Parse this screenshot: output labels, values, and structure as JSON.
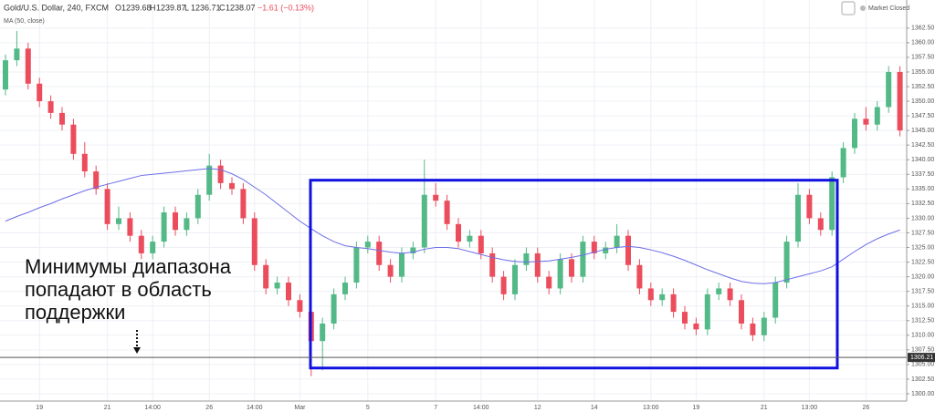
{
  "header": {
    "symbol": "Gold/U.S. Dollar, 240, FXCM",
    "ohlc": [
      {
        "key": "O",
        "value": "1239.68"
      },
      {
        "key": "H",
        "value": "1239.87"
      },
      {
        "key": "L",
        "value": "1236.71"
      },
      {
        "key": "C",
        "value": "1238.07"
      }
    ],
    "change": "−1.61 (−0.13%)",
    "status": "Market Closed"
  },
  "annotation": [
    "Минимумы диапазона",
    "попадают в область",
    "поддержки"
  ],
  "chart_data": {
    "type": "candlestick",
    "categories": [
      null,
      null,
      null,
      "19",
      null,
      null,
      null,
      null,
      null,
      "21",
      null,
      null,
      null,
      "14:00",
      null,
      null,
      null,
      null,
      "26",
      null,
      null,
      null,
      "14:00",
      null,
      null,
      null,
      "Mar",
      null,
      null,
      null,
      null,
      null,
      "5",
      null,
      null,
      null,
      null,
      null,
      "7",
      null,
      null,
      null,
      "14:00",
      null,
      null,
      null,
      null,
      "12",
      null,
      null,
      null,
      null,
      "14",
      null,
      null,
      null,
      null,
      "13:00",
      null,
      null,
      null,
      "19",
      null,
      null,
      null,
      null,
      null,
      "21",
      null,
      null,
      null,
      "13:00",
      null,
      null,
      null,
      null,
      "26",
      null,
      null,
      null
    ],
    "open": [
      1352,
      1357,
      1359,
      1353,
      1350,
      1348,
      1346,
      1341,
      1338,
      1335,
      1329,
      1330,
      1327,
      1324,
      1326,
      1331,
      1328,
      1330,
      1334,
      1339,
      1336,
      1335,
      1330,
      1322,
      1318,
      1319,
      1316,
      1314,
      1309,
      1312,
      1317,
      1319,
      1325,
      1326,
      1322,
      1320,
      1324,
      1325,
      1334,
      1333,
      1329,
      1326,
      1327,
      1324,
      1320,
      1317,
      1322,
      1324,
      1320,
      1318,
      1323,
      1320,
      1326,
      1324,
      1325,
      1327,
      1322,
      1318,
      1316,
      1317,
      1314,
      1312,
      1311,
      1317,
      1318,
      1316,
      1312,
      1310,
      1313,
      1319,
      1326,
      1334,
      1330,
      1328,
      1337,
      1342,
      1347,
      1346,
      1349,
      1355
    ],
    "high": [
      1358,
      1362,
      1360,
      1354,
      1351,
      1349,
      1347,
      1343,
      1339,
      1336,
      1332,
      1331,
      1328,
      1327,
      1332,
      1332,
      1331,
      1335,
      1341,
      1340,
      1337,
      1336,
      1331,
      1323,
      1320,
      1320,
      1317,
      1315,
      1313,
      1318,
      1320,
      1326,
      1327,
      1327,
      1323,
      1325,
      1326,
      1340,
      1336,
      1334,
      1330,
      1328,
      1328,
      1325,
      1321,
      1323,
      1325,
      1325,
      1321,
      1324,
      1324,
      1327,
      1327,
      1326,
      1329,
      1328,
      1323,
      1319,
      1318,
      1318,
      1315,
      1313,
      1318,
      1319,
      1319,
      1317,
      1313,
      1314,
      1320,
      1327,
      1336,
      1335,
      1331,
      1338,
      1343,
      1348,
      1349,
      1350,
      1356,
      1356
    ],
    "low": [
      1351,
      1356,
      1352,
      1349,
      1347,
      1345,
      1340,
      1337,
      1334,
      1328,
      1328,
      1326,
      1323,
      1323,
      1325,
      1327,
      1327,
      1329,
      1333,
      1335,
      1334,
      1329,
      1321,
      1317,
      1317,
      1315,
      1313,
      1303,
      1304,
      1311,
      1316,
      1318,
      1324,
      1321,
      1319,
      1319,
      1323,
      1324,
      1332,
      1328,
      1325,
      1325,
      1323,
      1319,
      1316,
      1316,
      1321,
      1319,
      1317,
      1317,
      1319,
      1319,
      1323,
      1323,
      1324,
      1321,
      1317,
      1315,
      1315,
      1313,
      1311,
      1310,
      1310,
      1316,
      1315,
      1311,
      1309,
      1309,
      1312,
      1318,
      1325,
      1329,
      1327,
      1327,
      1336,
      1341,
      1345,
      1345,
      1348,
      1344
    ],
    "close": [
      1357,
      1359,
      1353,
      1350,
      1348,
      1346,
      1341,
      1338,
      1335,
      1329,
      1330,
      1327,
      1324,
      1326,
      1331,
      1328,
      1330,
      1334,
      1339,
      1336,
      1335,
      1330,
      1322,
      1318,
      1319,
      1316,
      1314,
      1309,
      1312,
      1317,
      1319,
      1325,
      1326,
      1322,
      1320,
      1324,
      1325,
      1334,
      1333,
      1329,
      1326,
      1327,
      1324,
      1320,
      1317,
      1322,
      1324,
      1320,
      1318,
      1323,
      1320,
      1326,
      1324,
      1325,
      1327,
      1322,
      1318,
      1316,
      1317,
      1314,
      1312,
      1311,
      1317,
      1318,
      1316,
      1312,
      1310,
      1313,
      1319,
      1326,
      1334,
      1330,
      1328,
      1337,
      1342,
      1347,
      1346,
      1349,
      1355,
      1345
    ],
    "up_color": "#53b987",
    "down_color": "#eb4d5c",
    "series": [
      {
        "name": "MA (50, close)",
        "color": "#6e6ee8",
        "values": [
          1329.5,
          1330.3,
          1331,
          1331.8,
          1332.5,
          1333.3,
          1334,
          1334.7,
          1335.3,
          1335.8,
          1336.3,
          1336.8,
          1337.3,
          1337.5,
          1337.7,
          1337.9,
          1338.1,
          1338.3,
          1338.5,
          1338.3,
          1337.6,
          1336.6,
          1335.3,
          1334,
          1332.5,
          1331,
          1329.5,
          1328.2,
          1327,
          1326,
          1325.3,
          1325,
          1324.8,
          1324.5,
          1324.2,
          1324,
          1324.2,
          1324.7,
          1325,
          1325,
          1324.8,
          1324.3,
          1323.8,
          1323.3,
          1322.9,
          1322.6,
          1322.5,
          1322.6,
          1322.7,
          1323,
          1323.3,
          1323.7,
          1324.2,
          1324.7,
          1325,
          1325.2,
          1325,
          1324.6,
          1324.1,
          1323.5,
          1322.8,
          1322,
          1321.2,
          1320.5,
          1319.8,
          1319.2,
          1318.9,
          1318.8,
          1319,
          1319.5,
          1320,
          1320.5,
          1321,
          1321.7,
          1323,
          1324.3,
          1325.5,
          1326.5,
          1327.3,
          1328
        ]
      }
    ],
    "last_price": 1306.21,
    "range_box": {
      "color": "#1010e0",
      "ylim": [
        1304.4,
        1336.5
      ]
    },
    "ylim": [
      1298.75,
      1367.3
    ],
    "yticks": [
      {
        "value": 1300,
        "label": "1300.00"
      },
      {
        "value": 1302.5,
        "label": "1302.50"
      },
      {
        "value": 1305,
        "label": "1305.00"
      },
      {
        "value": 1307.5,
        "label": "1307.50"
      },
      {
        "value": 1310,
        "label": "1310.00"
      },
      {
        "value": 1312.5,
        "label": "1312.50"
      },
      {
        "value": 1315,
        "label": "1315.00"
      },
      {
        "value": 1317.5,
        "label": "1317.50"
      },
      {
        "value": 1320,
        "label": "1320.00"
      },
      {
        "value": 1322.5,
        "label": "1322.50"
      },
      {
        "value": 1325,
        "label": "1325.00"
      },
      {
        "value": 1327.5,
        "label": "1327.50"
      },
      {
        "value": 1330,
        "label": "1330.00"
      },
      {
        "value": 1332.5,
        "label": "1332.50"
      },
      {
        "value": 1335,
        "label": "1335.00"
      },
      {
        "value": 1337.5,
        "label": "1337.50"
      },
      {
        "value": 1340,
        "label": "1340.00"
      },
      {
        "value": 1342.5,
        "label": "1342.50"
      },
      {
        "value": 1345,
        "label": "1345.00"
      },
      {
        "value": 1347.5,
        "label": "1347.50"
      },
      {
        "value": 1350,
        "label": "1350.00"
      },
      {
        "value": 1352.5,
        "label": "1352.50"
      },
      {
        "value": 1355,
        "label": "1355.00"
      },
      {
        "value": 1357.5,
        "label": "1357.50"
      },
      {
        "value": 1360,
        "label": "1360.00"
      },
      {
        "value": 1362.5,
        "label": "1362.50"
      }
    ],
    "grid": true
  }
}
